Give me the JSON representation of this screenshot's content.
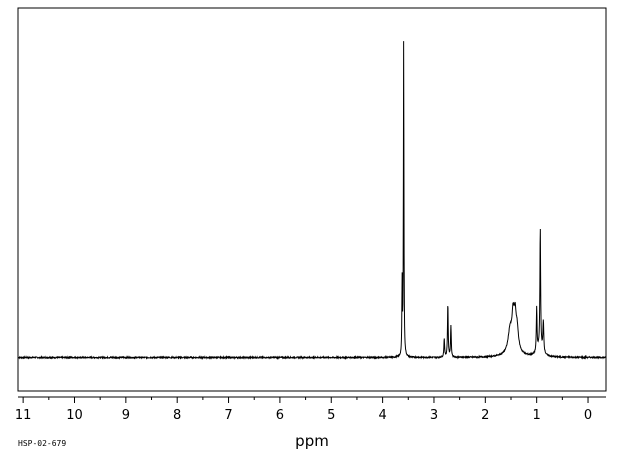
{
  "sample_id": "HSP-02-679",
  "chart_data": {
    "type": "line",
    "title": "",
    "xlabel": "ppm",
    "ylabel": "",
    "xlim": [
      11.1,
      -0.35
    ],
    "ylim": [
      -0.1,
      1.0
    ],
    "x_reversed": true,
    "grid": false,
    "legend": "none",
    "major_ticks": [
      11,
      10,
      9,
      8,
      7,
      6,
      5,
      4,
      3,
      2,
      1,
      0
    ],
    "tick_labels": [
      "11",
      "10",
      "9",
      "8",
      "7",
      "6",
      "5",
      "4",
      "3",
      "2",
      "1",
      "0"
    ],
    "minor_tick_step": 0.5,
    "peaks": [
      {
        "x": 3.59,
        "height": 1.0,
        "width": 0.006
      },
      {
        "x": 3.62,
        "height": 0.23,
        "width": 0.006
      },
      {
        "x": 2.8,
        "height": 0.06,
        "width": 0.008
      },
      {
        "x": 2.73,
        "height": 0.17,
        "width": 0.008
      },
      {
        "x": 2.67,
        "height": 0.1,
        "width": 0.008
      },
      {
        "x": 1.52,
        "height": 0.06,
        "width": 0.04
      },
      {
        "x": 1.46,
        "height": 0.09,
        "width": 0.025
      },
      {
        "x": 1.42,
        "height": 0.09,
        "width": 0.025
      },
      {
        "x": 1.38,
        "height": 0.06,
        "width": 0.03
      },
      {
        "x": 1.46,
        "height": 0.03,
        "width": 0.12
      },
      {
        "x": 1.0,
        "height": 0.14,
        "width": 0.008
      },
      {
        "x": 0.93,
        "height": 0.38,
        "width": 0.008
      },
      {
        "x": 0.87,
        "height": 0.1,
        "width": 0.01
      },
      {
        "x": 0.94,
        "height": 0.03,
        "width": 0.06
      }
    ]
  }
}
